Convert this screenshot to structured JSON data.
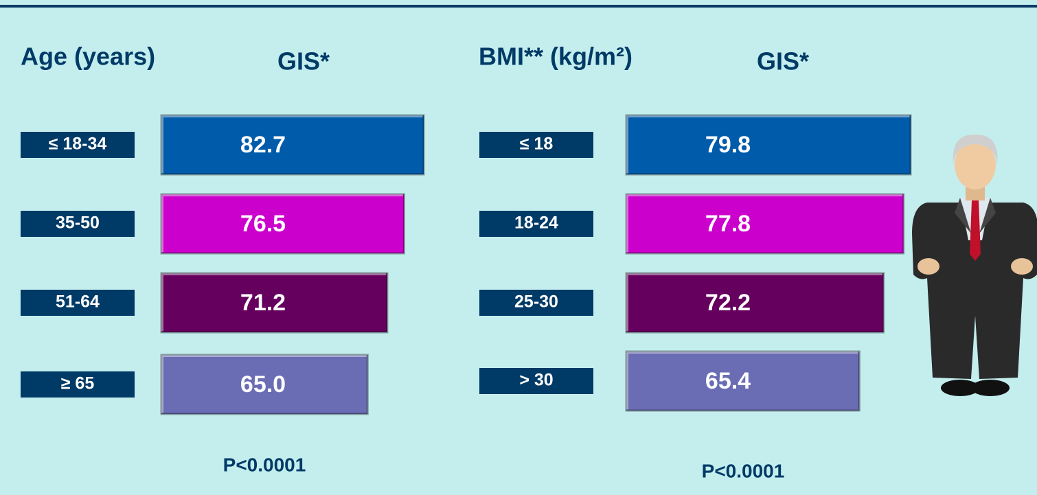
{
  "chart_data": [
    {
      "type": "bar",
      "orientation": "horizontal",
      "category_title": "Age (years)",
      "value_title": "GIS*",
      "categories": [
        "≤ 18-34",
        "35-50",
        "51-64",
        "≥ 65"
      ],
      "values": [
        82.7,
        76.5,
        71.2,
        65.0
      ],
      "value_labels": [
        "82.7",
        "76.5",
        "71.2",
        "65.0"
      ],
      "colors": [
        "#005bab",
        "#cc00cc",
        "#66005e",
        "#6a6db4"
      ],
      "note": "P<0.0001"
    },
    {
      "type": "bar",
      "orientation": "horizontal",
      "category_title": "BMI** (kg/m²)",
      "value_title": "GIS*",
      "categories": [
        "≤ 18",
        "18-24",
        "25-30",
        "> 30"
      ],
      "values": [
        79.8,
        77.8,
        72.2,
        65.4
      ],
      "value_labels": [
        "79.8",
        "77.8",
        "72.2",
        "65.4"
      ],
      "colors": [
        "#005bab",
        "#cc00cc",
        "#66005e",
        "#6a6db4"
      ],
      "note": "P<0.0001"
    }
  ]
}
